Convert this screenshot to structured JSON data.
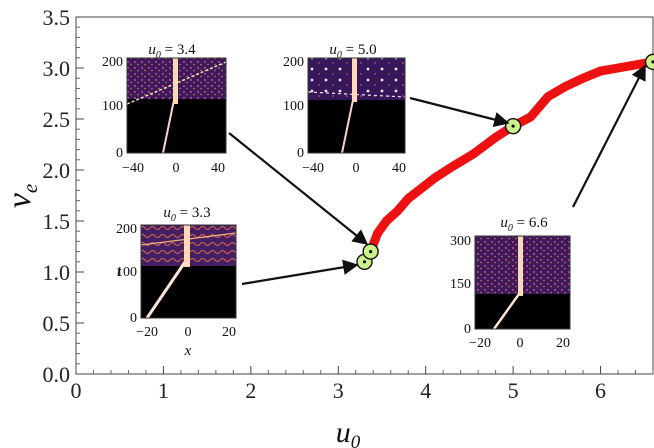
{
  "chart_data": {
    "type": "line",
    "xlabel": "u",
    "xlabel_sub": "0",
    "ylabel": "v",
    "ylabel_sub": "e",
    "xlim": [
      0,
      6.6
    ],
    "ylim": [
      0,
      3.5
    ],
    "xticks": [
      "0",
      "1",
      "2",
      "3",
      "4",
      "5",
      "6"
    ],
    "yticks": [
      "0.0",
      "0.5",
      "1.0",
      "1.5",
      "2.0",
      "2.5",
      "3.0",
      "3.5"
    ],
    "series": [
      {
        "color": "#ee1111",
        "x": [
          3.37,
          3.45,
          3.55,
          3.68,
          3.8,
          3.95,
          4.1,
          4.3,
          4.55,
          4.8,
          5.0,
          5.2,
          5.4,
          5.6,
          5.8,
          6.0,
          6.2,
          6.4,
          6.6
        ],
        "y": [
          1.2,
          1.38,
          1.5,
          1.6,
          1.72,
          1.82,
          1.92,
          2.03,
          2.16,
          2.32,
          2.43,
          2.52,
          2.72,
          2.82,
          2.9,
          2.97,
          3.0,
          3.03,
          3.06
        ]
      }
    ],
    "markers": [
      {
        "x": 3.3,
        "y": 1.1
      },
      {
        "x": 3.37,
        "y": 1.2
      },
      {
        "x": 5.0,
        "y": 2.43
      },
      {
        "x": 6.6,
        "y": 3.06
      }
    ],
    "insets": [
      {
        "label": "u",
        "label_sub": "0",
        "equals": "=",
        "value": "3.4",
        "xticks": [
          "−40",
          "0",
          "40"
        ],
        "yticks": [
          "200",
          "100",
          "0"
        ],
        "xlabel": "",
        "ylabel": ""
      },
      {
        "label": "u",
        "label_sub": "0",
        "equals": "=",
        "value": "5.0",
        "xticks": [
          "−40",
          "0",
          "40"
        ],
        "yticks": [
          "200",
          "100",
          "0"
        ],
        "xlabel": "",
        "ylabel": ""
      },
      {
        "label": "u",
        "label_sub": "0",
        "equals": "=",
        "value": "3.3",
        "xticks": [
          "−20",
          "0",
          "20"
        ],
        "yticks": [
          "200",
          "100",
          "0"
        ],
        "xlabel": "x",
        "ylabel": "t"
      },
      {
        "label": "u",
        "label_sub": "0",
        "equals": "=",
        "value": "6.6",
        "xticks": [
          "−20",
          "0",
          "20"
        ],
        "yticks": [
          "300",
          "150",
          "0"
        ],
        "xlabel": "",
        "ylabel": ""
      }
    ]
  }
}
